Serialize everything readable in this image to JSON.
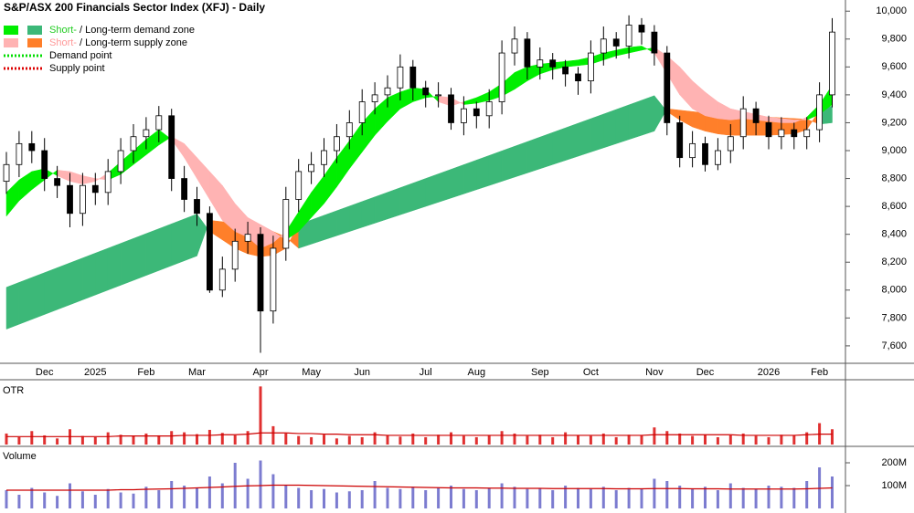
{
  "chart_data": {
    "type": "candlestick",
    "title": "S&P/ASX 200 Financials Sector Index (XFJ) - Daily",
    "legend": [
      {
        "parts": [
          {
            "text": "Short-",
            "color": "#22cc22"
          },
          {
            "text": " / ",
            "color": "#000000"
          },
          {
            "text": "Long-term demand zone",
            "color": "#000000"
          }
        ],
        "colors": [
          "#00ee00",
          "#3cb878"
        ]
      },
      {
        "parts": [
          {
            "text": "Short-",
            "color": "#ff9999"
          },
          {
            "text": " / ",
            "color": "#000000"
          },
          {
            "text": "Long-term supply zone",
            "color": "#000000"
          }
        ],
        "colors": [
          "#ffb3b3",
          "#ff7f2a"
        ]
      },
      {
        "parts": [
          {
            "text": "Demand point",
            "color": "#000000"
          }
        ],
        "colors": [
          "#00dd00"
        ]
      },
      {
        "parts": [
          {
            "text": "Supply point",
            "color": "#000000"
          }
        ],
        "colors": [
          "#dd0000"
        ]
      }
    ],
    "categories": [
      null,
      null,
      null,
      "Dec",
      null,
      null,
      null,
      "2025",
      null,
      null,
      null,
      "Feb",
      null,
      null,
      null,
      "Mar",
      null,
      null,
      null,
      null,
      "Apr",
      null,
      null,
      null,
      "May",
      null,
      null,
      null,
      "Jun",
      null,
      null,
      null,
      null,
      "Jul",
      null,
      null,
      null,
      "Aug",
      null,
      null,
      null,
      null,
      "Sep",
      null,
      null,
      null,
      "Oct",
      null,
      null,
      null,
      null,
      "Nov",
      null,
      null,
      null,
      "Dec",
      null,
      null,
      null,
      null,
      "2026",
      null,
      null,
      null,
      "Feb",
      null
    ],
    "open": [
      8780,
      8900,
      9050,
      9000,
      8800,
      8750,
      8550,
      8750,
      8700,
      8850,
      9000,
      9100,
      9150,
      9250,
      8800,
      8650,
      8550,
      8000,
      8150,
      8350,
      8400,
      7850,
      8300,
      8650,
      8850,
      8900,
      9000,
      9100,
      9200,
      9350,
      9400,
      9450,
      9600,
      9450,
      9400,
      9400,
      9200,
      9300,
      9250,
      9350,
      9700,
      9800,
      9600,
      9650,
      9600,
      9550,
      9500,
      9700,
      9800,
      9750,
      9900,
      9850,
      9700,
      9200,
      8950,
      9050,
      8900,
      9000,
      9100,
      9300,
      9200,
      9100,
      9150,
      9100,
      9150,
      9400
    ],
    "high": [
      8990,
      9140,
      9140,
      9090,
      8890,
      8840,
      8840,
      8840,
      8940,
      9090,
      9190,
      9240,
      9320,
      9300,
      8890,
      8740,
      8600,
      8240,
      8440,
      8490,
      8450,
      8390,
      8740,
      8940,
      8990,
      9090,
      9190,
      9290,
      9440,
      9490,
      9540,
      9690,
      9650,
      9500,
      9490,
      9450,
      9390,
      9350,
      9440,
      9790,
      9890,
      9850,
      9740,
      9700,
      9650,
      9600,
      9790,
      9890,
      9850,
      9970,
      9950,
      9900,
      9750,
      9250,
      9140,
      9100,
      9090,
      9190,
      9390,
      9350,
      9250,
      9240,
      9200,
      9240,
      9490,
      9950
    ],
    "low": [
      8690,
      8810,
      8910,
      8710,
      8660,
      8450,
      8460,
      8610,
      8610,
      8760,
      8910,
      9010,
      9060,
      8710,
      8560,
      8460,
      7980,
      7950,
      8060,
      8260,
      7550,
      7760,
      8210,
      8560,
      8760,
      8810,
      8910,
      9010,
      9110,
      9260,
      9310,
      9360,
      9360,
      9310,
      9310,
      9150,
      9110,
      9160,
      9160,
      9260,
      9610,
      9510,
      9510,
      9510,
      9460,
      9400,
      9410,
      9610,
      9660,
      9660,
      9760,
      9610,
      9110,
      8880,
      8880,
      8850,
      8860,
      8910,
      9010,
      9110,
      9010,
      9010,
      9010,
      9010,
      9060,
      9310
    ],
    "close": [
      8900,
      9050,
      9000,
      8800,
      8750,
      8550,
      8750,
      8700,
      8850,
      9000,
      9100,
      9150,
      9250,
      8800,
      8650,
      8550,
      8000,
      8150,
      8350,
      8400,
      7850,
      8300,
      8650,
      8850,
      8900,
      9000,
      9100,
      9200,
      9350,
      9400,
      9450,
      9600,
      9450,
      9400,
      9400,
      9200,
      9300,
      9250,
      9350,
      9700,
      9800,
      9600,
      9650,
      9600,
      9550,
      9500,
      9700,
      9800,
      9750,
      9900,
      9850,
      9700,
      9200,
      8950,
      9050,
      8900,
      9000,
      9100,
      9300,
      9200,
      9100,
      9150,
      9100,
      9150,
      9400,
      9850
    ],
    "short_fast": [
      8700,
      8790,
      8850,
      8870,
      8820,
      8780,
      8760,
      8780,
      8840,
      8920,
      9000,
      9080,
      9150,
      9080,
      8950,
      8800,
      8650,
      8500,
      8420,
      8380,
      8300,
      8340,
      8420,
      8560,
      8700,
      8820,
      8950,
      9070,
      9200,
      9300,
      9380,
      9420,
      9450,
      9440,
      9350,
      9320,
      9350,
      9380,
      9420,
      9480,
      9560,
      9600,
      9620,
      9630,
      9640,
      9650,
      9670,
      9700,
      9720,
      9740,
      9750,
      9700,
      9550,
      9400,
      9300,
      9250,
      9230,
      9220,
      9230,
      9220,
      9210,
      9200,
      9200,
      9240,
      9330,
      9470
    ],
    "short_slow": [
      8530,
      8640,
      8720,
      8790,
      8860,
      8850,
      8820,
      8800,
      8790,
      8830,
      8900,
      8970,
      9040,
      9100,
      9050,
      8950,
      8850,
      8750,
      8620,
      8520,
      8470,
      8420,
      8360,
      8420,
      8520,
      8620,
      8740,
      8870,
      8990,
      9110,
      9210,
      9300,
      9350,
      9380,
      9390,
      9380,
      9330,
      9340,
      9360,
      9390,
      9440,
      9500,
      9550,
      9580,
      9600,
      9610,
      9620,
      9650,
      9680,
      9700,
      9720,
      9740,
      9680,
      9600,
      9500,
      9420,
      9350,
      9300,
      9280,
      9260,
      9240,
      9230,
      9220,
      9220,
      9260,
      9330
    ],
    "long_fast": [
      8020,
      8055,
      8090,
      8125,
      8160,
      8195,
      8230,
      8265,
      8300,
      8335,
      8370,
      8405,
      8440,
      8475,
      8510,
      8545,
      8420,
      8360,
      8300,
      8260,
      8240,
      8250,
      8300,
      8470,
      8503,
      8536,
      8569,
      8602,
      8635,
      8668,
      8701,
      8734,
      8767,
      8800,
      8833,
      8866,
      8899,
      8932,
      8965,
      8998,
      9031,
      9064,
      9097,
      9130,
      9163,
      9196,
      9229,
      9262,
      9295,
      9328,
      9361,
      9394,
      9280,
      9220,
      9170,
      9140,
      9120,
      9110,
      9110,
      9110,
      9110,
      9115,
      9120,
      9150,
      9290,
      9320
    ],
    "long_slow": [
      7720,
      7755,
      7790,
      7825,
      7860,
      7895,
      7930,
      7965,
      8000,
      8035,
      8070,
      8105,
      8140,
      8175,
      8210,
      8245,
      8500,
      8490,
      8480,
      8470,
      8450,
      8420,
      8380,
      8300,
      8330,
      8360,
      8390,
      8420,
      8450,
      8480,
      8510,
      8540,
      8570,
      8600,
      8630,
      8660,
      8690,
      8720,
      8750,
      8780,
      8810,
      8840,
      8870,
      8900,
      8930,
      8960,
      8990,
      9020,
      9050,
      9080,
      9110,
      9140,
      9300,
      9290,
      9280,
      9270,
      9260,
      9255,
      9250,
      9245,
      9240,
      9235,
      9230,
      9225,
      9190,
      9200
    ],
    "ylim": [
      7475,
      10080
    ],
    "yticks": [
      {
        "value": 7600,
        "label": "7,600"
      },
      {
        "value": 7800,
        "label": "7,800"
      },
      {
        "value": 8000,
        "label": "8,000"
      },
      {
        "value": 8200,
        "label": "8,200"
      },
      {
        "value": 8400,
        "label": "8,400"
      },
      {
        "value": 8600,
        "label": "8,600"
      },
      {
        "value": 8800,
        "label": "8,800"
      },
      {
        "value": 9000,
        "label": "9,000"
      },
      {
        "value": 9200,
        "label": "9,200"
      },
      {
        "value": 9400,
        "label": "9,400"
      },
      {
        "value": 9600,
        "label": "9,600"
      },
      {
        "value": 9800,
        "label": "9,800"
      },
      {
        "value": 10000,
        "label": "10,000"
      }
    ],
    "otr": {
      "label": "OTR",
      "color": "#e03030",
      "average_color": "#cc0000",
      "ylim": [
        0,
        100
      ],
      "values": [
        18,
        12,
        22,
        15,
        10,
        25,
        14,
        12,
        20,
        16,
        14,
        18,
        15,
        22,
        20,
        17,
        24,
        19,
        15,
        22,
        95,
        30,
        18,
        14,
        12,
        16,
        10,
        14,
        12,
        20,
        15,
        13,
        18,
        12,
        16,
        20,
        14,
        12,
        15,
        22,
        18,
        14,
        16,
        12,
        20,
        15,
        14,
        18,
        12,
        16,
        15,
        28,
        22,
        18,
        14,
        16,
        12,
        15,
        18,
        14,
        12,
        16,
        15,
        20,
        35,
        25
      ],
      "average": [
        13,
        13,
        13,
        13,
        13,
        13,
        13,
        13,
        13,
        14,
        14,
        14,
        14,
        14,
        15,
        15,
        15,
        16,
        16,
        17,
        19,
        19,
        19,
        18,
        18,
        17,
        17,
        16,
        16,
        16,
        15,
        15,
        15,
        15,
        15,
        15,
        15,
        15,
        15,
        15,
        15,
        15,
        15,
        15,
        15,
        15,
        15,
        15,
        15,
        15,
        15,
        16,
        16,
        16,
        16,
        16,
        16,
        16,
        15,
        15,
        15,
        15,
        15,
        16,
        17,
        17
      ]
    },
    "volume": {
      "label": "Volume",
      "color": "#7c7cd0",
      "average_color": "#cc0000",
      "ylim": [
        0,
        260000000
      ],
      "yticks": [
        {
          "value": 100000000,
          "label": "100M"
        },
        {
          "value": 200000000,
          "label": "200M"
        }
      ],
      "values": [
        80000000,
        60000000,
        90000000,
        70000000,
        55000000,
        110000000,
        75000000,
        60000000,
        85000000,
        70000000,
        65000000,
        95000000,
        80000000,
        120000000,
        100000000,
        90000000,
        140000000,
        110000000,
        200000000,
        130000000,
        210000000,
        150000000,
        100000000,
        90000000,
        80000000,
        85000000,
        70000000,
        75000000,
        80000000,
        120000000,
        90000000,
        85000000,
        95000000,
        80000000,
        90000000,
        100000000,
        85000000,
        80000000,
        90000000,
        110000000,
        95000000,
        85000000,
        90000000,
        80000000,
        100000000,
        90000000,
        85000000,
        95000000,
        80000000,
        90000000,
        85000000,
        130000000,
        120000000,
        100000000,
        85000000,
        95000000,
        80000000,
        110000000,
        90000000,
        85000000,
        100000000,
        95000000,
        90000000,
        120000000,
        180000000,
        140000000
      ],
      "average": [
        80000000,
        80000000,
        80000000,
        80000000,
        80000000,
        80000000,
        80000000,
        80000000,
        80000000,
        82000000,
        82000000,
        84000000,
        85000000,
        86000000,
        88000000,
        90000000,
        92000000,
        94000000,
        97000000,
        99000000,
        100000000,
        102000000,
        102000000,
        102000000,
        101000000,
        100000000,
        99000000,
        98000000,
        97000000,
        96000000,
        95000000,
        94000000,
        93000000,
        92000000,
        91000000,
        90000000,
        90000000,
        90000000,
        89000000,
        89000000,
        88000000,
        88000000,
        88000000,
        87000000,
        87000000,
        87000000,
        87000000,
        87000000,
        86000000,
        86000000,
        86000000,
        87000000,
        87000000,
        87000000,
        86000000,
        86000000,
        86000000,
        85000000,
        85000000,
        85000000,
        85000000,
        85000000,
        85000000,
        86000000,
        88000000,
        90000000
      ]
    }
  }
}
